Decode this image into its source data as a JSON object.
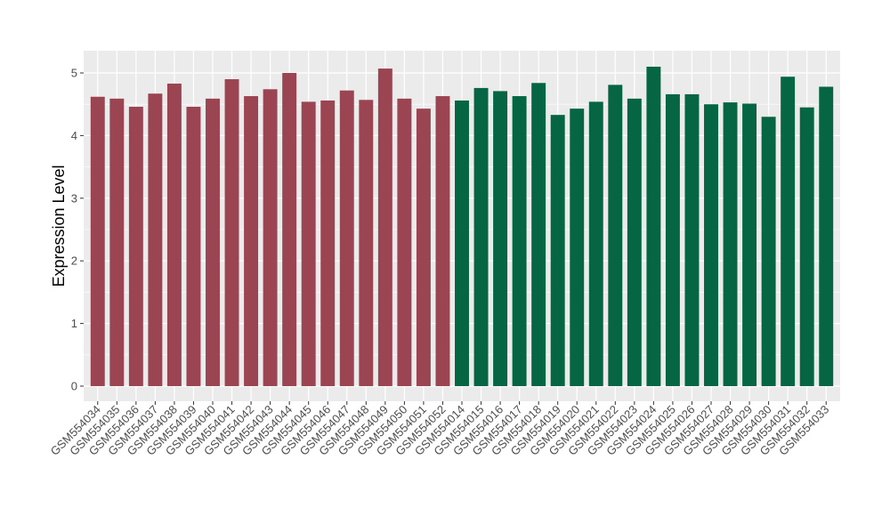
{
  "chart_data": {
    "type": "bar",
    "title": "",
    "xlabel": "",
    "ylabel": "Expression Level",
    "ylim": [
      0,
      5.3
    ],
    "yticks": [
      0,
      1,
      2,
      3,
      4,
      5
    ],
    "grid": true,
    "legend": "none",
    "colors": {
      "panel_bg": "#ebebeb",
      "grid": "#ffffff",
      "group1": "#9b4452",
      "group2": "#066644"
    },
    "categories": [
      "GSM554034",
      "GSM554035",
      "GSM554036",
      "GSM554037",
      "GSM554038",
      "GSM554039",
      "GSM554040",
      "GSM554041",
      "GSM554042",
      "GSM554043",
      "GSM554044",
      "GSM554045",
      "GSM554046",
      "GSM554047",
      "GSM554048",
      "GSM554049",
      "GSM554050",
      "GSM554051",
      "GSM554052",
      "GSM554014",
      "GSM554015",
      "GSM554016",
      "GSM554017",
      "GSM554018",
      "GSM554019",
      "GSM554020",
      "GSM554021",
      "GSM554022",
      "GSM554023",
      "GSM554024",
      "GSM554025",
      "GSM554026",
      "GSM554027",
      "GSM554028",
      "GSM554029",
      "GSM554030",
      "GSM554031",
      "GSM554032",
      "GSM554033"
    ],
    "values": [
      4.62,
      4.59,
      4.46,
      4.67,
      4.83,
      4.46,
      4.59,
      4.9,
      4.63,
      4.74,
      5.0,
      4.54,
      4.56,
      4.72,
      4.57,
      5.07,
      4.59,
      4.43,
      4.63,
      4.56,
      4.76,
      4.71,
      4.63,
      4.84,
      4.33,
      4.43,
      4.54,
      4.81,
      4.59,
      5.1,
      4.66,
      4.66,
      4.5,
      4.53,
      4.51,
      4.3,
      4.94,
      4.45,
      4.78
    ],
    "groups": [
      1,
      1,
      1,
      1,
      1,
      1,
      1,
      1,
      1,
      1,
      1,
      1,
      1,
      1,
      1,
      1,
      1,
      1,
      1,
      2,
      2,
      2,
      2,
      2,
      2,
      2,
      2,
      2,
      2,
      2,
      2,
      2,
      2,
      2,
      2,
      2,
      2,
      2,
      2
    ]
  }
}
